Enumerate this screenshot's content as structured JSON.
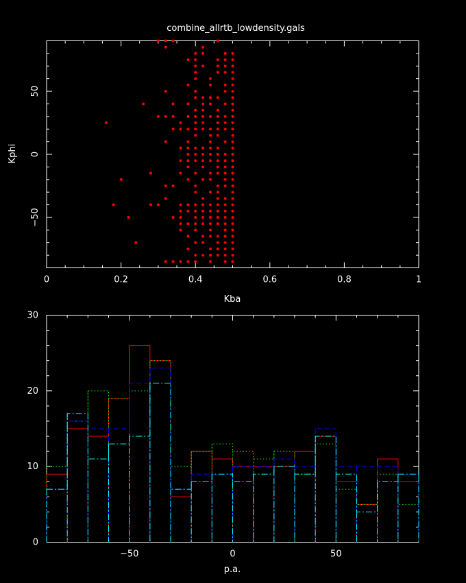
{
  "chart_data": [
    {
      "type": "scatter",
      "title": "combine_allrtb_lowdensity.gals",
      "xlabel": "Kba",
      "ylabel": "Kphi",
      "xlim": [
        0,
        1
      ],
      "ylim": [
        -90,
        90
      ],
      "xticks": [
        0,
        0.2,
        0.4,
        0.6,
        0.8,
        1
      ],
      "xtick_labels": [
        "0",
        "0.2",
        "0.4",
        "0.6",
        "0.8",
        "1"
      ],
      "yticks": [
        -50,
        0,
        50
      ],
      "ytick_labels": [
        "−50",
        "0",
        "50"
      ],
      "color": "#ff0000",
      "points": [
        [
          0.16,
          25
        ],
        [
          0.18,
          -40
        ],
        [
          0.2,
          -20
        ],
        [
          0.22,
          -50
        ],
        [
          0.24,
          -70
        ],
        [
          0.26,
          40
        ],
        [
          0.28,
          -15
        ],
        [
          0.28,
          -40
        ],
        [
          0.3,
          90
        ],
        [
          0.3,
          30
        ],
        [
          0.3,
          -40
        ],
        [
          0.32,
          90
        ],
        [
          0.32,
          85
        ],
        [
          0.32,
          50
        ],
        [
          0.32,
          30
        ],
        [
          0.32,
          10
        ],
        [
          0.32,
          -25
        ],
        [
          0.32,
          -35
        ],
        [
          0.32,
          -85
        ],
        [
          0.34,
          90
        ],
        [
          0.34,
          40
        ],
        [
          0.34,
          30
        ],
        [
          0.34,
          20
        ],
        [
          0.34,
          -25
        ],
        [
          0.34,
          -50
        ],
        [
          0.34,
          -85
        ],
        [
          0.36,
          25
        ],
        [
          0.36,
          20
        ],
        [
          0.36,
          5
        ],
        [
          0.36,
          -5
        ],
        [
          0.36,
          -15
        ],
        [
          0.36,
          -40
        ],
        [
          0.36,
          -45
        ],
        [
          0.36,
          -50
        ],
        [
          0.36,
          -55
        ],
        [
          0.36,
          -60
        ],
        [
          0.36,
          -85
        ],
        [
          0.38,
          75
        ],
        [
          0.38,
          55
        ],
        [
          0.38,
          40
        ],
        [
          0.38,
          30
        ],
        [
          0.38,
          20
        ],
        [
          0.38,
          10
        ],
        [
          0.38,
          5
        ],
        [
          0.38,
          0
        ],
        [
          0.38,
          -5
        ],
        [
          0.38,
          -10
        ],
        [
          0.38,
          -20
        ],
        [
          0.38,
          -40
        ],
        [
          0.38,
          -45
        ],
        [
          0.38,
          -55
        ],
        [
          0.38,
          -65
        ],
        [
          0.38,
          -75
        ],
        [
          0.38,
          -85
        ],
        [
          0.4,
          80
        ],
        [
          0.4,
          75
        ],
        [
          0.4,
          70
        ],
        [
          0.4,
          65
        ],
        [
          0.4,
          60
        ],
        [
          0.4,
          50
        ],
        [
          0.4,
          45
        ],
        [
          0.4,
          35
        ],
        [
          0.4,
          30
        ],
        [
          0.4,
          25
        ],
        [
          0.4,
          20
        ],
        [
          0.4,
          15
        ],
        [
          0.4,
          5
        ],
        [
          0.4,
          0
        ],
        [
          0.4,
          -5
        ],
        [
          0.4,
          -15
        ],
        [
          0.4,
          -25
        ],
        [
          0.4,
          -30
        ],
        [
          0.4,
          -40
        ],
        [
          0.4,
          -45
        ],
        [
          0.4,
          -50
        ],
        [
          0.4,
          -55
        ],
        [
          0.4,
          -60
        ],
        [
          0.4,
          -70
        ],
        [
          0.4,
          -80
        ],
        [
          0.4,
          -85
        ],
        [
          0.42,
          85
        ],
        [
          0.42,
          80
        ],
        [
          0.42,
          70
        ],
        [
          0.42,
          45
        ],
        [
          0.42,
          40
        ],
        [
          0.42,
          35
        ],
        [
          0.42,
          30
        ],
        [
          0.42,
          25
        ],
        [
          0.42,
          20
        ],
        [
          0.42,
          5
        ],
        [
          0.42,
          0
        ],
        [
          0.42,
          -5
        ],
        [
          0.42,
          -10
        ],
        [
          0.42,
          -20
        ],
        [
          0.42,
          -35
        ],
        [
          0.42,
          -40
        ],
        [
          0.42,
          -45
        ],
        [
          0.42,
          -50
        ],
        [
          0.42,
          -55
        ],
        [
          0.42,
          -65
        ],
        [
          0.42,
          -70
        ],
        [
          0.42,
          -80
        ],
        [
          0.44,
          60
        ],
        [
          0.44,
          55
        ],
        [
          0.44,
          45
        ],
        [
          0.44,
          40
        ],
        [
          0.44,
          30
        ],
        [
          0.44,
          20
        ],
        [
          0.44,
          15
        ],
        [
          0.44,
          10
        ],
        [
          0.44,
          5
        ],
        [
          0.44,
          0
        ],
        [
          0.44,
          -5
        ],
        [
          0.44,
          -15
        ],
        [
          0.44,
          -20
        ],
        [
          0.44,
          -30
        ],
        [
          0.44,
          -40
        ],
        [
          0.44,
          -45
        ],
        [
          0.44,
          -50
        ],
        [
          0.44,
          -55
        ],
        [
          0.44,
          -60
        ],
        [
          0.44,
          -65
        ],
        [
          0.44,
          -75
        ],
        [
          0.44,
          -80
        ],
        [
          0.44,
          -85
        ],
        [
          0.46,
          90
        ],
        [
          0.46,
          75
        ],
        [
          0.46,
          70
        ],
        [
          0.46,
          65
        ],
        [
          0.46,
          45
        ],
        [
          0.46,
          35
        ],
        [
          0.46,
          30
        ],
        [
          0.46,
          25
        ],
        [
          0.46,
          20
        ],
        [
          0.46,
          15
        ],
        [
          0.46,
          5
        ],
        [
          0.46,
          0
        ],
        [
          0.46,
          -5
        ],
        [
          0.46,
          -10
        ],
        [
          0.46,
          -15
        ],
        [
          0.46,
          -25
        ],
        [
          0.46,
          -30
        ],
        [
          0.46,
          -35
        ],
        [
          0.46,
          -40
        ],
        [
          0.46,
          -45
        ],
        [
          0.46,
          -50
        ],
        [
          0.46,
          -55
        ],
        [
          0.46,
          -65
        ],
        [
          0.46,
          -70
        ],
        [
          0.46,
          -75
        ],
        [
          0.46,
          -80
        ],
        [
          0.48,
          80
        ],
        [
          0.48,
          75
        ],
        [
          0.48,
          70
        ],
        [
          0.48,
          65
        ],
        [
          0.48,
          55
        ],
        [
          0.48,
          50
        ],
        [
          0.48,
          40
        ],
        [
          0.48,
          30
        ],
        [
          0.48,
          25
        ],
        [
          0.48,
          20
        ],
        [
          0.48,
          10
        ],
        [
          0.48,
          0
        ],
        [
          0.48,
          -5
        ],
        [
          0.48,
          -10
        ],
        [
          0.48,
          -15
        ],
        [
          0.48,
          -20
        ],
        [
          0.48,
          -25
        ],
        [
          0.48,
          -35
        ],
        [
          0.48,
          -40
        ],
        [
          0.48,
          -45
        ],
        [
          0.48,
          -50
        ],
        [
          0.48,
          -55
        ],
        [
          0.48,
          -60
        ],
        [
          0.48,
          -65
        ],
        [
          0.48,
          -70
        ],
        [
          0.48,
          -75
        ],
        [
          0.48,
          -80
        ],
        [
          0.48,
          -85
        ],
        [
          0.5,
          80
        ],
        [
          0.5,
          75
        ],
        [
          0.5,
          70
        ],
        [
          0.5,
          65
        ],
        [
          0.5,
          60
        ],
        [
          0.5,
          55
        ],
        [
          0.5,
          50
        ],
        [
          0.5,
          45
        ],
        [
          0.5,
          40
        ],
        [
          0.5,
          35
        ],
        [
          0.5,
          30
        ],
        [
          0.5,
          25
        ],
        [
          0.5,
          20
        ],
        [
          0.5,
          15
        ],
        [
          0.5,
          10
        ],
        [
          0.5,
          5
        ],
        [
          0.5,
          0
        ],
        [
          0.5,
          -5
        ],
        [
          0.5,
          -10
        ],
        [
          0.5,
          -15
        ],
        [
          0.5,
          -20
        ],
        [
          0.5,
          -25
        ],
        [
          0.5,
          -30
        ],
        [
          0.5,
          -35
        ],
        [
          0.5,
          -40
        ],
        [
          0.5,
          -45
        ],
        [
          0.5,
          -50
        ],
        [
          0.5,
          -55
        ],
        [
          0.5,
          -60
        ],
        [
          0.5,
          -65
        ],
        [
          0.5,
          -70
        ],
        [
          0.5,
          -75
        ],
        [
          0.5,
          -80
        ],
        [
          0.5,
          -85
        ]
      ]
    },
    {
      "type": "histogram",
      "title": "",
      "xlabel": "p.a.",
      "ylabel": "",
      "xlim": [
        -90,
        90
      ],
      "ylim": [
        0,
        30
      ],
      "xticks": [
        -50,
        0,
        50
      ],
      "xtick_labels": [
        "−50",
        "0",
        "50"
      ],
      "yticks": [
        0,
        10,
        20,
        30
      ],
      "ytick_labels": [
        "0",
        "10",
        "20",
        "30"
      ],
      "bin_edges": [
        -90,
        -80,
        -70,
        -60,
        -50,
        -40,
        -30,
        -20,
        -10,
        0,
        10,
        20,
        30,
        40,
        50,
        60,
        70,
        80,
        90
      ],
      "series": [
        {
          "color": "#ff0000",
          "dash": "",
          "values": [
            9,
            15,
            14,
            19,
            26,
            24,
            6,
            12,
            11,
            10,
            10,
            10,
            12,
            14,
            8,
            5,
            11,
            8
          ]
        },
        {
          "color": "#00ff00",
          "dash": "1.5 3",
          "values": [
            10,
            16,
            20,
            19,
            20,
            24,
            10,
            12,
            13,
            12,
            11,
            12,
            9,
            13,
            7,
            5,
            9,
            5
          ]
        },
        {
          "color": "#0000ff",
          "dash": "7 4",
          "values": [
            7,
            16,
            15,
            15,
            21,
            23,
            7,
            9,
            9,
            10,
            10,
            11,
            10,
            15,
            10,
            10,
            10,
            9
          ]
        },
        {
          "color": "#00ffff",
          "dash": "9 3 2 3",
          "values": [
            7,
            17,
            11,
            13,
            14,
            21,
            7,
            8,
            9,
            8,
            9,
            10,
            9,
            14,
            9,
            4,
            8,
            9
          ]
        }
      ]
    }
  ]
}
